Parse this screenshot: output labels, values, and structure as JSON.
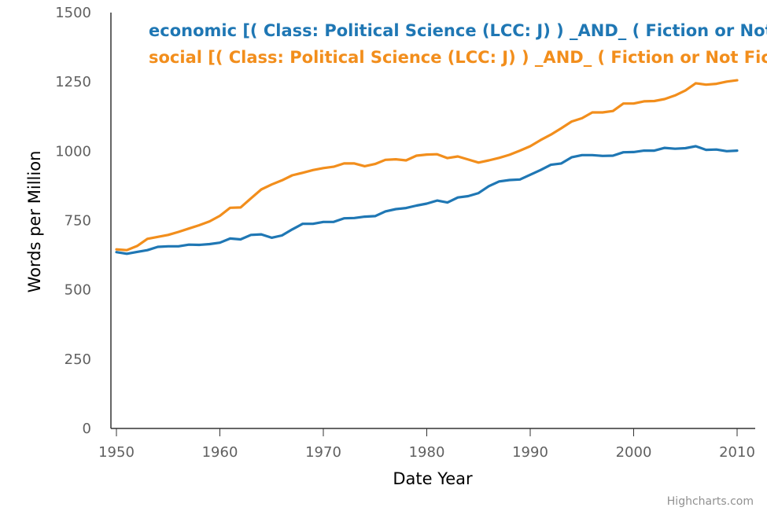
{
  "chart_data": {
    "type": "line",
    "title": "",
    "xlabel": "Date Year",
    "ylabel": "Words per Million",
    "xlim": [
      1950,
      2011
    ],
    "ylim": [
      0,
      1500
    ],
    "x_ticks": [
      1950,
      1960,
      1970,
      1980,
      1990,
      2000,
      2010
    ],
    "y_ticks": [
      0,
      250,
      500,
      750,
      1000,
      1250,
      1500
    ],
    "legend_position": "top-right",
    "credits": "Highcharts.com",
    "series": [
      {
        "name": "economic [( Class: Political Science (LCC: J) ) _AND_ ( Fiction or Not Fiction: Not Fiction ) ]",
        "color": "#1f77b4",
        "x": [
          1950,
          1951,
          1952,
          1953,
          1954,
          1955,
          1956,
          1957,
          1958,
          1959,
          1960,
          1961,
          1962,
          1963,
          1964,
          1965,
          1966,
          1967,
          1968,
          1969,
          1970,
          1971,
          1972,
          1973,
          1974,
          1975,
          1976,
          1977,
          1978,
          1979,
          1980,
          1981,
          1982,
          1983,
          1984,
          1985,
          1986,
          1987,
          1988,
          1989,
          1990,
          1991,
          1992,
          1993,
          1994,
          1995,
          1996,
          1997,
          1998,
          1999,
          2000,
          2001,
          2002,
          2003,
          2004,
          2005,
          2006,
          2007,
          2008,
          2009,
          2010
        ],
        "values": [
          636,
          630,
          637,
          643,
          655,
          657,
          657,
          663,
          662,
          665,
          670,
          685,
          682,
          698,
          700,
          688,
          696,
          718,
          738,
          738,
          745,
          745,
          758,
          759,
          764,
          766,
          783,
          791,
          795,
          804,
          811,
          822,
          815,
          833,
          838,
          849,
          874,
          891,
          896,
          898,
          915,
          932,
          951,
          956,
          978,
          986,
          986,
          983,
          984,
          996,
          997,
          1002,
          1002,
          1012,
          1009,
          1011,
          1018,
          1005,
          1006,
          1000,
          1002
        ]
      },
      {
        "name": "social [( Class: Political Science (LCC: J) ) _AND_ ( Fiction or Not Fiction: Not Fiction ) ]",
        "color": "#f28e1c",
        "x": [
          1950,
          1951,
          1952,
          1953,
          1954,
          1955,
          1956,
          1957,
          1958,
          1959,
          1960,
          1961,
          1962,
          1963,
          1964,
          1965,
          1966,
          1967,
          1968,
          1969,
          1970,
          1971,
          1972,
          1973,
          1974,
          1975,
          1976,
          1977,
          1978,
          1979,
          1980,
          1981,
          1982,
          1983,
          1984,
          1985,
          1986,
          1987,
          1988,
          1989,
          1990,
          1991,
          1992,
          1993,
          1994,
          1995,
          1996,
          1997,
          1998,
          1999,
          2000,
          2001,
          2002,
          2003,
          2004,
          2005,
          2006,
          2007,
          2008,
          2009,
          2010
        ],
        "values": [
          646,
          643,
          658,
          684,
          691,
          698,
          709,
          721,
          733,
          747,
          767,
          796,
          797,
          830,
          862,
          880,
          895,
          913,
          922,
          932,
          939,
          944,
          956,
          956,
          946,
          954,
          969,
          971,
          967,
          984,
          988,
          989,
          975,
          981,
          970,
          959,
          967,
          976,
          987,
          1002,
          1018,
          1040,
          1060,
          1083,
          1107,
          1119,
          1140,
          1140,
          1145,
          1172,
          1172,
          1180,
          1181,
          1188,
          1201,
          1219,
          1245,
          1240,
          1243,
          1251,
          1256
        ]
      }
    ]
  }
}
